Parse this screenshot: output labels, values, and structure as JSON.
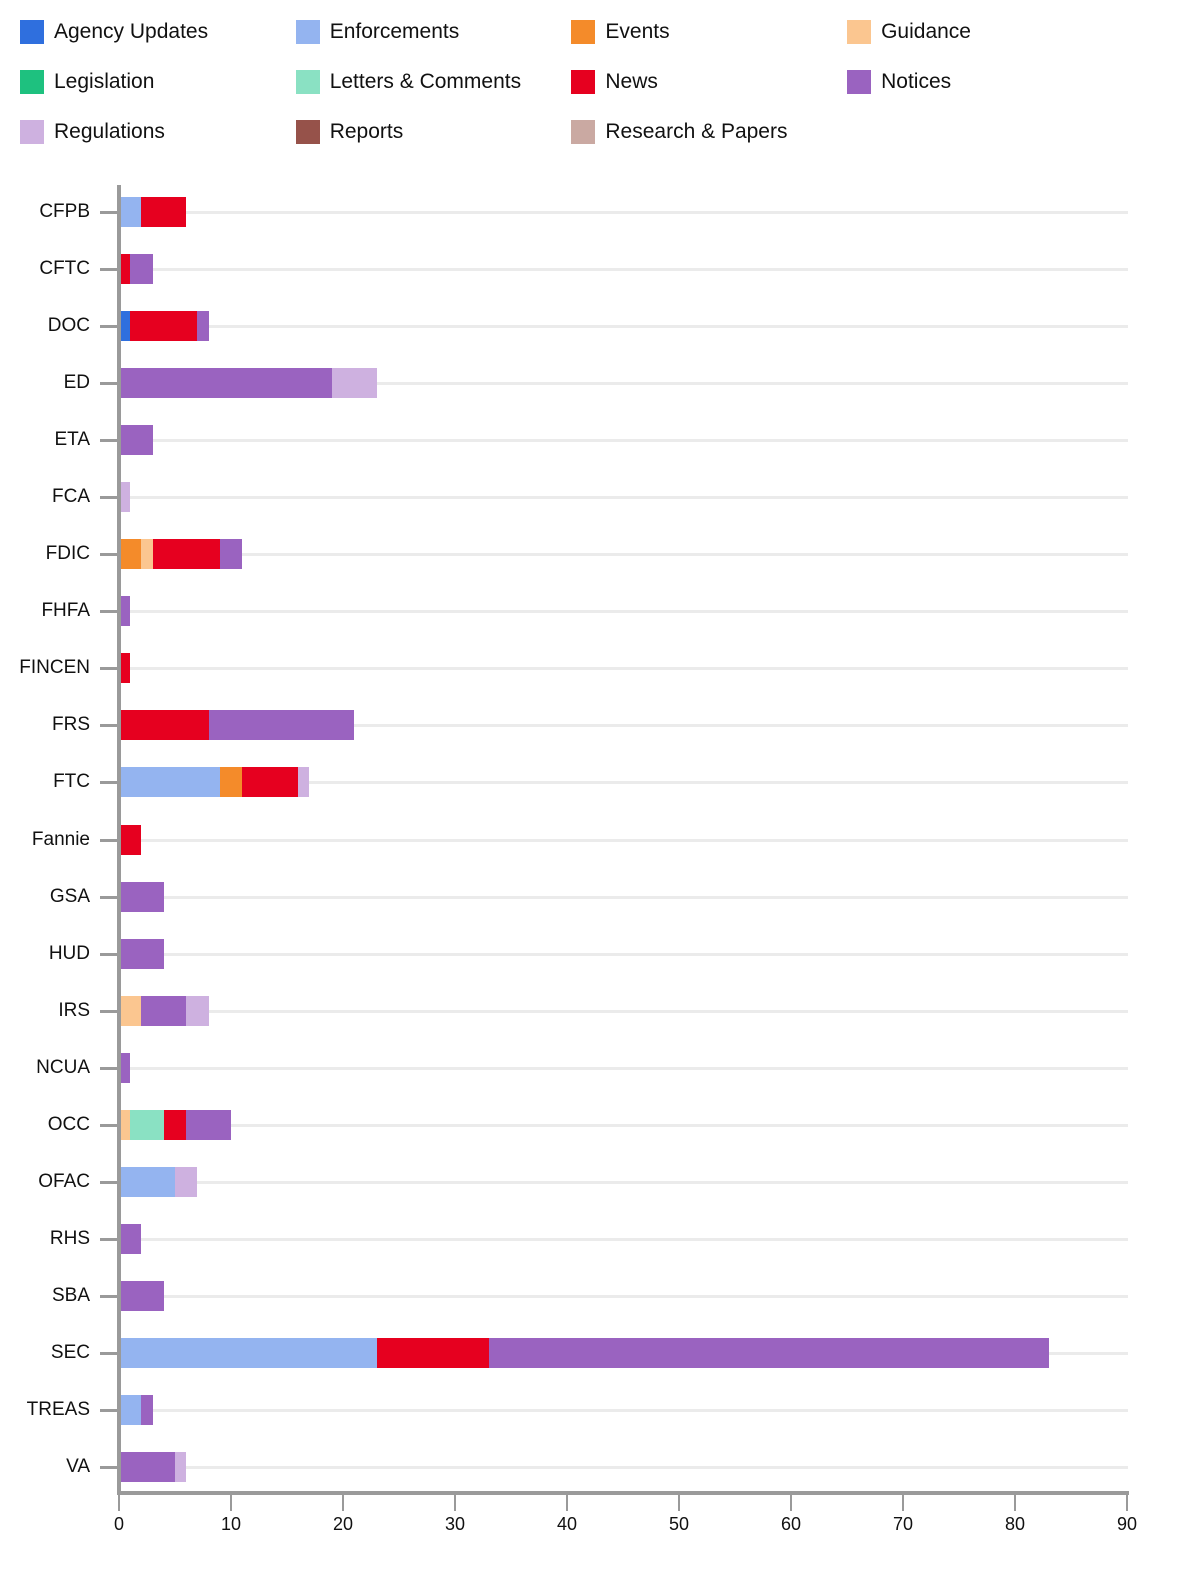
{
  "chart_data": {
    "type": "bar",
    "orientation": "horizontal",
    "stacked": true,
    "title": "",
    "xlabel": "",
    "ylabel": "",
    "xlim": [
      0,
      90
    ],
    "x_ticks": [
      0,
      10,
      20,
      30,
      40,
      50,
      60,
      70,
      80,
      90
    ],
    "grid": true,
    "legend_position": "top",
    "categories": [
      "CFPB",
      "CFTC",
      "DOC",
      "ED",
      "ETA",
      "FCA",
      "FDIC",
      "FHFA",
      "FINCEN",
      "FRS",
      "FTC",
      "Fannie",
      "GSA",
      "HUD",
      "IRS",
      "NCUA",
      "OCC",
      "OFAC",
      "RHS",
      "SBA",
      "SEC",
      "TREAS",
      "VA"
    ],
    "series": [
      {
        "name": "Agency Updates",
        "color": "#2f6fde",
        "values": [
          0,
          0,
          1,
          0,
          0,
          0,
          0,
          0,
          0,
          0,
          0,
          0,
          0,
          0,
          0,
          0,
          0,
          0,
          0,
          0,
          0,
          0,
          0
        ]
      },
      {
        "name": "Enforcements",
        "color": "#94b4f0",
        "values": [
          2,
          0,
          0,
          0,
          0,
          0,
          0,
          0,
          0,
          0,
          9,
          0,
          0,
          0,
          0,
          0,
          0,
          5,
          0,
          0,
          23,
          2,
          0
        ]
      },
      {
        "name": "Events",
        "color": "#f48b2a",
        "values": [
          0,
          0,
          0,
          0,
          0,
          0,
          2,
          0,
          0,
          0,
          2,
          0,
          0,
          0,
          0,
          0,
          0,
          0,
          0,
          0,
          0,
          0,
          0
        ]
      },
      {
        "name": "Guidance",
        "color": "#fbc690",
        "values": [
          0,
          0,
          0,
          0,
          0,
          0,
          1,
          0,
          0,
          0,
          0,
          0,
          0,
          0,
          2,
          0,
          1,
          0,
          0,
          0,
          0,
          0,
          0
        ]
      },
      {
        "name": "Legislation",
        "color": "#1ec17f",
        "values": [
          0,
          0,
          0,
          0,
          0,
          0,
          0,
          0,
          0,
          0,
          0,
          0,
          0,
          0,
          0,
          0,
          0,
          0,
          0,
          0,
          0,
          0,
          0
        ]
      },
      {
        "name": "Letters & Comments",
        "color": "#8ae1c3",
        "values": [
          0,
          0,
          0,
          0,
          0,
          0,
          0,
          0,
          0,
          0,
          0,
          0,
          0,
          0,
          0,
          0,
          3,
          0,
          0,
          0,
          0,
          0,
          0
        ]
      },
      {
        "name": "News",
        "color": "#e6001f",
        "values": [
          4,
          1,
          6,
          0,
          0,
          0,
          6,
          0,
          1,
          8,
          5,
          2,
          0,
          0,
          0,
          0,
          2,
          0,
          0,
          0,
          10,
          0,
          0
        ]
      },
      {
        "name": "Notices",
        "color": "#9a63c0",
        "values": [
          0,
          2,
          1,
          19,
          3,
          0,
          2,
          1,
          0,
          13,
          0,
          0,
          4,
          4,
          4,
          1,
          4,
          0,
          2,
          4,
          50,
          1,
          5
        ]
      },
      {
        "name": "Regulations",
        "color": "#ceb1e0",
        "values": [
          0,
          0,
          0,
          4,
          0,
          1,
          0,
          0,
          0,
          0,
          1,
          0,
          0,
          0,
          2,
          0,
          0,
          2,
          0,
          0,
          0,
          0,
          1
        ]
      },
      {
        "name": "Reports",
        "color": "#96524a",
        "values": [
          0,
          0,
          0,
          0,
          0,
          0,
          0,
          0,
          0,
          0,
          0,
          0,
          0,
          0,
          0,
          0,
          0,
          0,
          0,
          0,
          0,
          0,
          0
        ]
      },
      {
        "name": "Research & Papers",
        "color": "#caa9a2",
        "values": [
          0,
          0,
          0,
          0,
          0,
          0,
          0,
          0,
          0,
          0,
          0,
          0,
          0,
          0,
          0,
          0,
          0,
          0,
          0,
          0,
          0,
          0,
          0
        ]
      }
    ]
  },
  "legend": [
    {
      "label": "Agency Updates",
      "color": "#2f6fde"
    },
    {
      "label": "Enforcements",
      "color": "#94b4f0"
    },
    {
      "label": "Events",
      "color": "#f48b2a"
    },
    {
      "label": "Guidance",
      "color": "#fbc690"
    },
    {
      "label": "Legislation",
      "color": "#1ec17f"
    },
    {
      "label": "Letters & Comments",
      "color": "#8ae1c3"
    },
    {
      "label": "News",
      "color": "#e6001f"
    },
    {
      "label": "Notices",
      "color": "#9a63c0"
    },
    {
      "label": "Regulations",
      "color": "#ceb1e0"
    },
    {
      "label": "Reports",
      "color": "#96524a"
    },
    {
      "label": "Research & Papers",
      "color": "#caa9a2"
    }
  ]
}
